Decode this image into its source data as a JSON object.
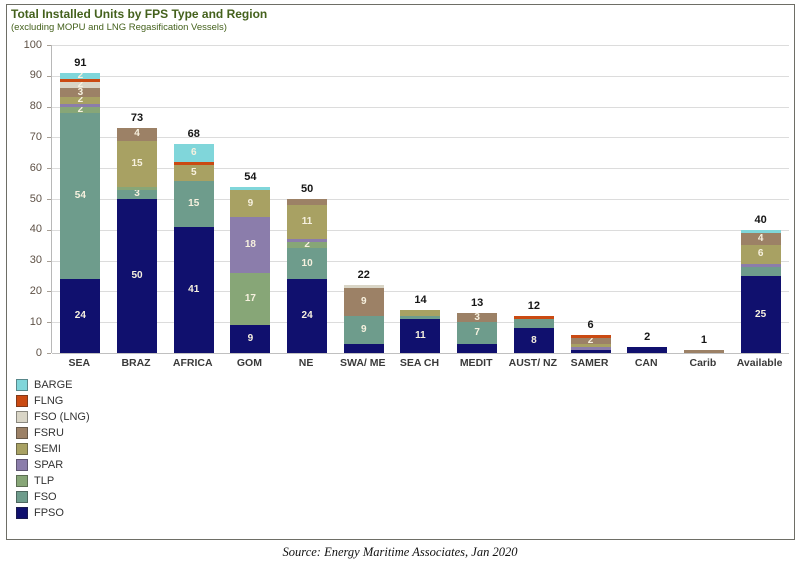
{
  "header": {
    "title": "Total Installed Units by FPS Type and Region",
    "subtitle": "(excluding MOPU and LNG Regasification Vessels)"
  },
  "source": "Source: Energy Maritime Associates, Jan 2020",
  "axis": {
    "y_ticks": [
      100,
      90,
      80,
      70,
      60,
      50,
      40,
      30,
      20,
      10,
      0
    ]
  },
  "colors": {
    "BARGE": "#80d6da",
    "FLNG": "#ca4a12",
    "FSO (LNG)": "#d9d5c6",
    "FSRU": "#9c8166",
    "SEMI": "#a8a163",
    "SPAR": "#8b7dab",
    "TLP": "#87a677",
    "FSO": "#6e9c8c",
    "FPSO": "#10106e"
  },
  "legend": {
    "items": [
      "BARGE",
      "FLNG",
      "FSO (LNG)",
      "FSRU",
      "SEMI",
      "SPAR",
      "TLP",
      "FSO",
      "FPSO"
    ]
  },
  "chart_data": {
    "type": "bar",
    "stacked": true,
    "title": "Total Installed Units by FPS Type and Region",
    "subtitle": "(excluding MOPU and LNG Regasification Vessels)",
    "xlabel": "",
    "ylabel": "",
    "ylim": [
      0,
      100
    ],
    "grid": true,
    "legend_position": "bottom-left",
    "series_order_bottom_up": [
      "FPSO",
      "FSO",
      "TLP",
      "SPAR",
      "SEMI",
      "FSRU",
      "FSO (LNG)",
      "FLNG",
      "BARGE"
    ],
    "categories": [
      "SEA",
      "BRAZ",
      "AFRICA",
      "GOM",
      "NE",
      "SWA/ ME",
      "SEA CH",
      "MEDIT",
      "AUST/ NZ",
      "SAMER",
      "CAN",
      "Carib",
      "Available"
    ],
    "totals": [
      91,
      73,
      68,
      54,
      50,
      22,
      14,
      13,
      12,
      6,
      2,
      1,
      40
    ],
    "bars": [
      {
        "category": "SEA",
        "total": 91,
        "segments": [
          {
            "series": "FPSO",
            "value": 24,
            "label_visible": true
          },
          {
            "series": "FSO",
            "value": 54,
            "label_visible": true
          },
          {
            "series": "TLP",
            "value": 2,
            "label_visible": true
          },
          {
            "series": "SPAR",
            "value": 1,
            "label_visible": false
          },
          {
            "series": "SEMI",
            "value": 2,
            "label_visible": true
          },
          {
            "series": "FSRU",
            "value": 3,
            "label_visible": true
          },
          {
            "series": "FSO (LNG)",
            "value": 2,
            "label_visible": true
          },
          {
            "series": "FLNG",
            "value": 1,
            "label_visible": false
          },
          {
            "series": "BARGE",
            "value": 2,
            "label_visible": true
          }
        ]
      },
      {
        "category": "BRAZ",
        "total": 73,
        "segments": [
          {
            "series": "FPSO",
            "value": 50,
            "label_visible": true
          },
          {
            "series": "FSO",
            "value": 3,
            "label_visible": true
          },
          {
            "series": "TLP",
            "value": 1,
            "label_visible": false
          },
          {
            "series": "SEMI",
            "value": 15,
            "label_visible": true
          },
          {
            "series": "FSRU",
            "value": 4,
            "label_visible": true
          }
        ]
      },
      {
        "category": "AFRICA",
        "total": 68,
        "segments": [
          {
            "series": "FPSO",
            "value": 41,
            "label_visible": true
          },
          {
            "series": "FSO",
            "value": 15,
            "label_visible": true
          },
          {
            "series": "SEMI",
            "value": 5,
            "label_visible": true
          },
          {
            "series": "FLNG",
            "value": 1,
            "label_visible": false
          },
          {
            "series": "BARGE",
            "value": 6,
            "label_visible": true
          }
        ]
      },
      {
        "category": "GOM",
        "total": 54,
        "segments": [
          {
            "series": "FPSO",
            "value": 9,
            "label_visible": true
          },
          {
            "series": "TLP",
            "value": 17,
            "label_visible": true
          },
          {
            "series": "SPAR",
            "value": 18,
            "label_visible": true
          },
          {
            "series": "SEMI",
            "value": 9,
            "label_visible": true
          },
          {
            "series": "BARGE",
            "value": 1,
            "label_visible": false
          }
        ]
      },
      {
        "category": "NE",
        "total": 50,
        "segments": [
          {
            "series": "FPSO",
            "value": 24,
            "label_visible": true
          },
          {
            "series": "FSO",
            "value": 10,
            "label_visible": true
          },
          {
            "series": "TLP",
            "value": 2,
            "label_visible": true
          },
          {
            "series": "SPAR",
            "value": 1,
            "label_visible": false
          },
          {
            "series": "SEMI",
            "value": 11,
            "label_visible": true
          },
          {
            "series": "FSRU",
            "value": 2,
            "label_visible": false
          }
        ]
      },
      {
        "category": "SWA/ ME",
        "total": 22,
        "segments": [
          {
            "series": "FPSO",
            "value": 3,
            "label_visible": false
          },
          {
            "series": "FSO",
            "value": 9,
            "label_visible": true
          },
          {
            "series": "FSRU",
            "value": 9,
            "label_visible": true
          },
          {
            "series": "FSO (LNG)",
            "value": 1,
            "label_visible": false
          }
        ]
      },
      {
        "category": "SEA CH",
        "total": 14,
        "segments": [
          {
            "series": "FPSO",
            "value": 11,
            "label_visible": true
          },
          {
            "series": "FSO",
            "value": 1,
            "label_visible": false
          },
          {
            "series": "SEMI",
            "value": 2,
            "label_visible": false
          }
        ]
      },
      {
        "category": "MEDIT",
        "total": 13,
        "segments": [
          {
            "series": "FPSO",
            "value": 3,
            "label_visible": false
          },
          {
            "series": "FSO",
            "value": 7,
            "label_visible": true
          },
          {
            "series": "FSRU",
            "value": 3,
            "label_visible": true
          }
        ]
      },
      {
        "category": "AUST/ NZ",
        "total": 12,
        "segments": [
          {
            "series": "FPSO",
            "value": 8,
            "label_visible": true
          },
          {
            "series": "FSO",
            "value": 3,
            "label_visible": false
          },
          {
            "series": "FLNG",
            "value": 1,
            "label_visible": false
          }
        ]
      },
      {
        "category": "SAMER",
        "total": 6,
        "segments": [
          {
            "series": "FPSO",
            "value": 1,
            "label_visible": false
          },
          {
            "series": "SPAR",
            "value": 1,
            "label_visible": false
          },
          {
            "series": "SEMI",
            "value": 1,
            "label_visible": false
          },
          {
            "series": "FSRU",
            "value": 2,
            "label_visible": true
          },
          {
            "series": "FLNG",
            "value": 1,
            "label_visible": false
          }
        ]
      },
      {
        "category": "CAN",
        "total": 2,
        "segments": [
          {
            "series": "FPSO",
            "value": 2,
            "label_visible": false
          }
        ]
      },
      {
        "category": "Carib",
        "total": 1,
        "segments": [
          {
            "series": "FSRU",
            "value": 1,
            "label_visible": false
          }
        ]
      },
      {
        "category": "Available",
        "total": 40,
        "segments": [
          {
            "series": "FPSO",
            "value": 25,
            "label_visible": true
          },
          {
            "series": "FSO",
            "value": 3,
            "label_visible": false
          },
          {
            "series": "SPAR",
            "value": 1,
            "label_visible": false
          },
          {
            "series": "SEMI",
            "value": 6,
            "label_visible": true
          },
          {
            "series": "FSRU",
            "value": 4,
            "label_visible": true
          },
          {
            "series": "BARGE",
            "value": 1,
            "label_visible": false
          }
        ]
      }
    ]
  }
}
